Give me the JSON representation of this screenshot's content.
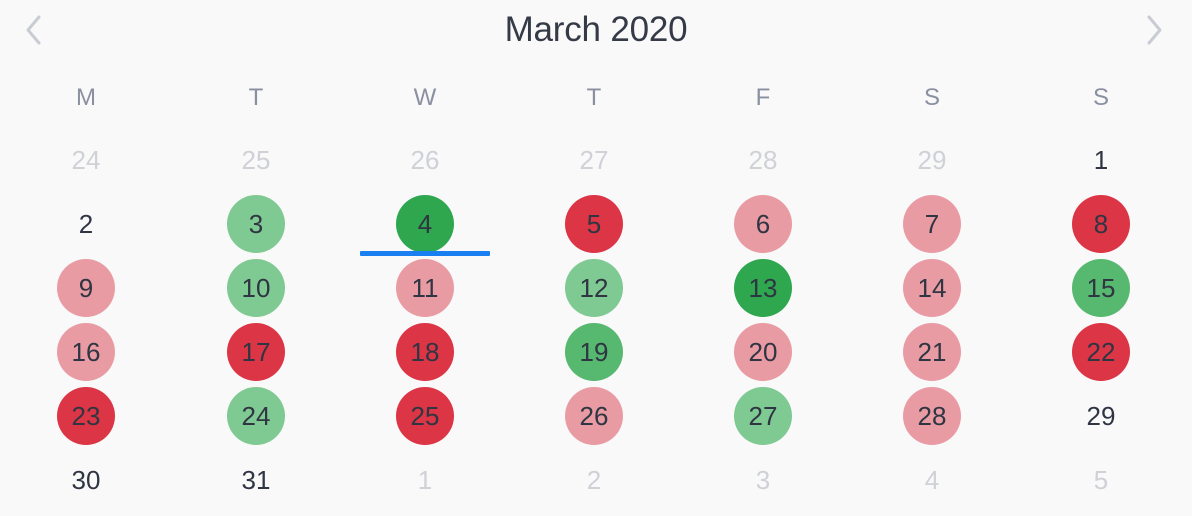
{
  "calendar": {
    "title": "March 2020",
    "prev_icon": "chevron-left-icon",
    "next_icon": "chevron-right-icon",
    "weekdays": [
      "M",
      "T",
      "W",
      "T",
      "F",
      "S",
      "S"
    ],
    "colors": {
      "red": "#dc3545",
      "light_red": "#e99ba3",
      "green": "#2ea74e",
      "medium_green": "#57b86f",
      "light_green": "#7fc992",
      "marker_blue": "#1a7ff0",
      "outside_text": "#cfd1d6"
    },
    "weeks": [
      [
        {
          "label": "24",
          "outside": true
        },
        {
          "label": "25",
          "outside": true
        },
        {
          "label": "26",
          "outside": true
        },
        {
          "label": "27",
          "outside": true
        },
        {
          "label": "28",
          "outside": true
        },
        {
          "label": "29",
          "outside": true
        },
        {
          "label": "1"
        }
      ],
      [
        {
          "label": "2"
        },
        {
          "label": "3",
          "status": "light_green"
        },
        {
          "label": "4",
          "status": "green",
          "selected": true
        },
        {
          "label": "5",
          "status": "red"
        },
        {
          "label": "6",
          "status": "light_red"
        },
        {
          "label": "7",
          "status": "light_red"
        },
        {
          "label": "8",
          "status": "red"
        }
      ],
      [
        {
          "label": "9",
          "status": "light_red"
        },
        {
          "label": "10",
          "status": "light_green"
        },
        {
          "label": "11",
          "status": "light_red"
        },
        {
          "label": "12",
          "status": "light_green"
        },
        {
          "label": "13",
          "status": "green"
        },
        {
          "label": "14",
          "status": "light_red"
        },
        {
          "label": "15",
          "status": "medium_green"
        }
      ],
      [
        {
          "label": "16",
          "status": "light_red"
        },
        {
          "label": "17",
          "status": "red"
        },
        {
          "label": "18",
          "status": "red"
        },
        {
          "label": "19",
          "status": "medium_green"
        },
        {
          "label": "20",
          "status": "light_red"
        },
        {
          "label": "21",
          "status": "light_red"
        },
        {
          "label": "22",
          "status": "red"
        }
      ],
      [
        {
          "label": "23",
          "status": "red"
        },
        {
          "label": "24",
          "status": "light_green"
        },
        {
          "label": "25",
          "status": "red"
        },
        {
          "label": "26",
          "status": "light_red"
        },
        {
          "label": "27",
          "status": "light_green"
        },
        {
          "label": "28",
          "status": "light_red"
        },
        {
          "label": "29"
        }
      ],
      [
        {
          "label": "30"
        },
        {
          "label": "31"
        },
        {
          "label": "1",
          "outside": true
        },
        {
          "label": "2",
          "outside": true
        },
        {
          "label": "3",
          "outside": true
        },
        {
          "label": "4",
          "outside": true
        },
        {
          "label": "5",
          "outside": true
        }
      ]
    ]
  }
}
